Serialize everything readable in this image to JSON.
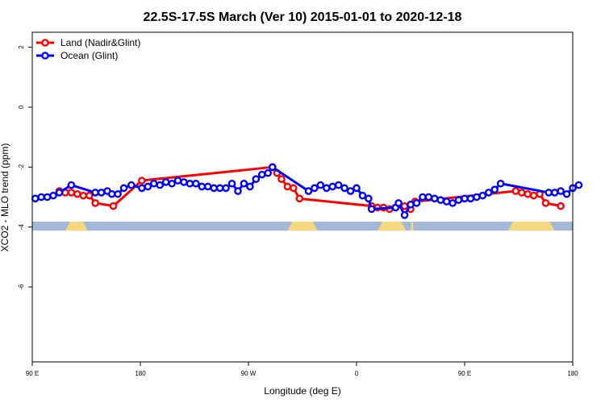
{
  "chart_data": {
    "type": "line",
    "title": "22.5S-17.5S March (Ver 10)   2015-01-01 to 2020-12-18",
    "xlabel": "Longitude (deg E)",
    "ylabel": "XCO2 - MLO trend (ppm)",
    "xlim": [
      90,
      450
    ],
    "ylim": [
      -8.5,
      2.5
    ],
    "x_ticks": [
      {
        "value": 90,
        "label": "90 E"
      },
      {
        "value": 162,
        "label": "180"
      },
      {
        "value": 234,
        "label": "90 W"
      },
      {
        "value": 306,
        "label": "0"
      },
      {
        "value": 378,
        "label": "90 E"
      },
      {
        "value": 450,
        "label": "180"
      }
    ],
    "y_ticks": [
      {
        "value": 2,
        "label": "2"
      },
      {
        "value": 0,
        "label": "0"
      },
      {
        "value": -2,
        "label": "-2"
      },
      {
        "value": -4,
        "label": "-4"
      },
      {
        "value": -6,
        "label": "-6"
      }
    ],
    "legend_position": "top-left",
    "series": [
      {
        "name": "Land (Nadir&Glint)",
        "color": "#ff0000",
        "points": [
          [
            108,
            -2.8
          ],
          [
            112,
            -2.85
          ],
          [
            116,
            -2.85
          ],
          [
            120,
            -2.9
          ],
          [
            124,
            -2.95
          ],
          [
            128,
            -2.95
          ],
          [
            132,
            -3.2
          ],
          [
            144,
            -3.3
          ],
          [
            163,
            -2.45
          ],
          [
            250,
            -2.0
          ],
          [
            253,
            -2.2
          ],
          [
            256,
            -2.4
          ],
          [
            260,
            -2.65
          ],
          [
            264,
            -2.7
          ],
          [
            268,
            -3.05
          ],
          [
            316,
            -3.3
          ],
          [
            320,
            -3.35
          ],
          [
            324,
            -3.35
          ],
          [
            328,
            -3.4
          ],
          [
            332,
            -3.35
          ],
          [
            338,
            -3.3
          ],
          [
            342,
            -3.4
          ],
          [
            345,
            -3.15
          ],
          [
            412,
            -2.8
          ],
          [
            416,
            -2.85
          ],
          [
            420,
            -2.9
          ],
          [
            424,
            -2.95
          ],
          [
            428,
            -2.9
          ],
          [
            432,
            -3.2
          ],
          [
            442,
            -3.3
          ]
        ]
      },
      {
        "name": "Ocean (Glint)",
        "color": "#0000ff",
        "points": [
          [
            92,
            -3.05
          ],
          [
            96,
            -3.0
          ],
          [
            100,
            -3.0
          ],
          [
            104,
            -2.95
          ],
          [
            108,
            -2.85
          ],
          [
            116,
            -2.6
          ],
          [
            132,
            -2.85
          ],
          [
            136,
            -2.85
          ],
          [
            140,
            -2.8
          ],
          [
            143,
            -2.9
          ],
          [
            147,
            -2.9
          ],
          [
            151,
            -2.7
          ],
          [
            156,
            -2.6
          ],
          [
            163,
            -2.7
          ],
          [
            167,
            -2.65
          ],
          [
            171,
            -2.55
          ],
          [
            175,
            -2.6
          ],
          [
            179,
            -2.5
          ],
          [
            183,
            -2.55
          ],
          [
            187,
            -2.45
          ],
          [
            191,
            -2.5
          ],
          [
            195,
            -2.55
          ],
          [
            199,
            -2.55
          ],
          [
            203,
            -2.65
          ],
          [
            207,
            -2.65
          ],
          [
            211,
            -2.7
          ],
          [
            215,
            -2.7
          ],
          [
            219,
            -2.7
          ],
          [
            223,
            -2.55
          ],
          [
            227,
            -2.8
          ],
          [
            231,
            -2.55
          ],
          [
            235,
            -2.65
          ],
          [
            239,
            -2.4
          ],
          [
            243,
            -2.25
          ],
          [
            247,
            -2.2
          ],
          [
            250,
            -2.0
          ],
          [
            274,
            -2.8
          ],
          [
            278,
            -2.7
          ],
          [
            282,
            -2.6
          ],
          [
            286,
            -2.7
          ],
          [
            290,
            -2.65
          ],
          [
            294,
            -2.6
          ],
          [
            298,
            -2.7
          ],
          [
            302,
            -2.8
          ],
          [
            306,
            -2.7
          ],
          [
            310,
            -2.95
          ],
          [
            314,
            -3.05
          ],
          [
            316,
            -3.4
          ],
          [
            332,
            -3.35
          ],
          [
            334,
            -3.2
          ],
          [
            338,
            -3.6
          ],
          [
            342,
            -3.25
          ],
          [
            346,
            -3.2
          ],
          [
            350,
            -3.0
          ],
          [
            354,
            -3.0
          ],
          [
            358,
            -3.05
          ],
          [
            362,
            -3.1
          ],
          [
            366,
            -3.15
          ],
          [
            370,
            -3.2
          ],
          [
            374,
            -3.1
          ],
          [
            378,
            -3.05
          ],
          [
            382,
            -3.05
          ],
          [
            386,
            -3.0
          ],
          [
            390,
            -2.95
          ],
          [
            394,
            -2.85
          ],
          [
            398,
            -2.75
          ],
          [
            402,
            -2.55
          ],
          [
            434,
            -2.85
          ],
          [
            438,
            -2.85
          ],
          [
            442,
            -2.8
          ],
          [
            446,
            -2.9
          ],
          [
            450,
            -2.7
          ],
          [
            454,
            -2.6
          ]
        ]
      }
    ],
    "surface_strip": {
      "y_top": -3.82,
      "y_bottom": -4.12,
      "ocean_color": "#a3b8d8",
      "land_color": "#f5d77f",
      "land_segments": [
        [
          112,
          127
        ],
        [
          260,
          280
        ],
        [
          320,
          339
        ],
        [
          342,
          344
        ],
        [
          407,
          438
        ]
      ]
    }
  }
}
